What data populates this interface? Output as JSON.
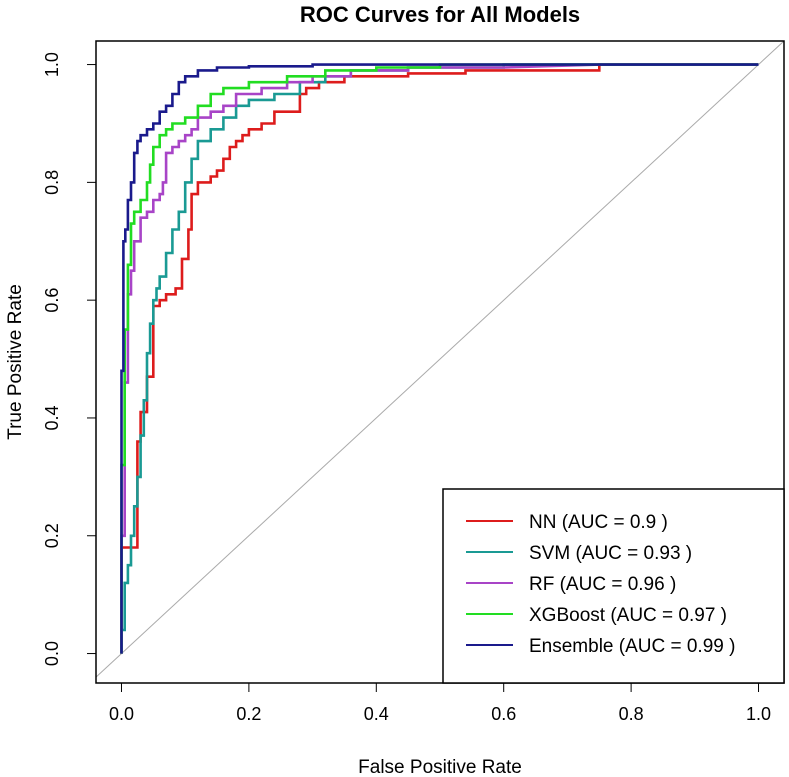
{
  "chart_data": {
    "type": "line",
    "title": "ROC Curves for All Models",
    "xlabel": "False Positive Rate",
    "ylabel": "True Positive Rate",
    "xlim": [
      -0.04,
      1.04
    ],
    "ylim": [
      -0.05,
      1.04
    ],
    "grid": false,
    "legend_position": "bottom-right",
    "xticks": [
      0.0,
      0.2,
      0.4,
      0.6,
      0.8,
      1.0
    ],
    "xtick_labels": [
      "0.0",
      "0.2",
      "0.4",
      "0.6",
      "0.8",
      "1.0"
    ],
    "yticks": [
      0.0,
      0.2,
      0.4,
      0.6,
      0.8,
      1.0
    ],
    "ytick_labels": [
      "0.0",
      "0.2",
      "0.4",
      "0.6",
      "0.8",
      "1.0"
    ],
    "reference_line": {
      "name": "chance",
      "points": [
        [
          -0.04,
          -0.04
        ],
        [
          1.04,
          1.04
        ]
      ],
      "color": "#aaaaaa"
    },
    "series": [
      {
        "name": "NN",
        "legend_label": "NN (AUC = 0.9 )",
        "color": "#dd1c1c",
        "x": [
          0,
          0,
          0.025,
          0.025,
          0.03,
          0.03,
          0.04,
          0.04,
          0.05,
          0.05,
          0.06,
          0.06,
          0.07,
          0.07,
          0.085,
          0.085,
          0.095,
          0.095,
          0.105,
          0.105,
          0.11,
          0.11,
          0.12,
          0.12,
          0.14,
          0.14,
          0.15,
          0.15,
          0.16,
          0.16,
          0.17,
          0.17,
          0.18,
          0.18,
          0.19,
          0.19,
          0.2,
          0.2,
          0.22,
          0.22,
          0.24,
          0.24,
          0.28,
          0.28,
          0.29,
          0.29,
          0.31,
          0.31,
          0.35,
          0.35,
          0.45,
          0.45,
          0.54,
          0.54,
          0.6,
          0.6,
          0.75,
          0.75,
          1.0
        ],
        "y": [
          0,
          0.18,
          0.18,
          0.36,
          0.36,
          0.41,
          0.41,
          0.47,
          0.47,
          0.59,
          0.59,
          0.6,
          0.6,
          0.61,
          0.61,
          0.62,
          0.62,
          0.67,
          0.67,
          0.72,
          0.72,
          0.78,
          0.78,
          0.8,
          0.8,
          0.81,
          0.81,
          0.82,
          0.82,
          0.84,
          0.84,
          0.86,
          0.86,
          0.87,
          0.87,
          0.88,
          0.88,
          0.89,
          0.89,
          0.9,
          0.9,
          0.92,
          0.92,
          0.95,
          0.95,
          0.96,
          0.96,
          0.97,
          0.97,
          0.98,
          0.98,
          0.985,
          0.985,
          0.99,
          0.99,
          0.99,
          0.99,
          1.0,
          1.0
        ]
      },
      {
        "name": "SVM",
        "legend_label": "SVM (AUC = 0.93 )",
        "color": "#1a9a94",
        "x": [
          0,
          0,
          0.005,
          0.005,
          0.01,
          0.01,
          0.015,
          0.015,
          0.02,
          0.02,
          0.025,
          0.025,
          0.03,
          0.03,
          0.035,
          0.035,
          0.04,
          0.04,
          0.045,
          0.045,
          0.05,
          0.05,
          0.055,
          0.055,
          0.06,
          0.06,
          0.07,
          0.07,
          0.08,
          0.08,
          0.09,
          0.09,
          0.1,
          0.1,
          0.11,
          0.11,
          0.12,
          0.12,
          0.14,
          0.14,
          0.16,
          0.16,
          0.18,
          0.18,
          0.2,
          0.2,
          0.24,
          0.24,
          0.28,
          0.28,
          0.32,
          0.32,
          0.36,
          0.36,
          0.45,
          0.45,
          0.55,
          0.55,
          0.6,
          0.6,
          0.7,
          1.0
        ],
        "y": [
          0,
          0.04,
          0.04,
          0.12,
          0.12,
          0.15,
          0.15,
          0.2,
          0.2,
          0.25,
          0.25,
          0.3,
          0.3,
          0.37,
          0.37,
          0.43,
          0.43,
          0.51,
          0.51,
          0.56,
          0.56,
          0.6,
          0.6,
          0.62,
          0.62,
          0.64,
          0.64,
          0.68,
          0.68,
          0.72,
          0.72,
          0.75,
          0.75,
          0.8,
          0.8,
          0.84,
          0.84,
          0.87,
          0.87,
          0.89,
          0.89,
          0.91,
          0.91,
          0.93,
          0.93,
          0.94,
          0.94,
          0.95,
          0.95,
          0.97,
          0.97,
          0.98,
          0.98,
          0.99,
          0.99,
          0.995,
          0.995,
          0.995,
          0.995,
          1.0,
          1.0,
          1.0
        ]
      },
      {
        "name": "RF",
        "legend_label": "RF (AUC = 0.96 )",
        "color": "#a844c7",
        "x": [
          0,
          0,
          0.005,
          0.005,
          0.01,
          0.01,
          0.015,
          0.015,
          0.02,
          0.02,
          0.03,
          0.03,
          0.04,
          0.04,
          0.05,
          0.05,
          0.06,
          0.06,
          0.065,
          0.065,
          0.07,
          0.07,
          0.08,
          0.08,
          0.09,
          0.09,
          0.1,
          0.1,
          0.11,
          0.11,
          0.12,
          0.12,
          0.14,
          0.14,
          0.16,
          0.16,
          0.18,
          0.18,
          0.22,
          0.22,
          0.26,
          0.26,
          0.3,
          0.3,
          0.36,
          0.36,
          0.45,
          0.45,
          0.6,
          0.6,
          0.75,
          1.0
        ],
        "y": [
          0,
          0.2,
          0.2,
          0.46,
          0.46,
          0.61,
          0.61,
          0.65,
          0.65,
          0.7,
          0.7,
          0.74,
          0.74,
          0.75,
          0.75,
          0.77,
          0.77,
          0.78,
          0.78,
          0.8,
          0.8,
          0.85,
          0.85,
          0.86,
          0.86,
          0.87,
          0.87,
          0.88,
          0.88,
          0.89,
          0.89,
          0.91,
          0.91,
          0.92,
          0.92,
          0.93,
          0.93,
          0.95,
          0.95,
          0.96,
          0.96,
          0.97,
          0.97,
          0.98,
          0.98,
          0.99,
          0.99,
          0.995,
          0.995,
          0.995,
          1.0,
          1.0
        ]
      },
      {
        "name": "XGBoost",
        "legend_label": "XGBoost (AUC = 0.97 )",
        "color": "#22dd22",
        "x": [
          0,
          0,
          0.005,
          0.005,
          0.01,
          0.01,
          0.015,
          0.015,
          0.02,
          0.02,
          0.03,
          0.03,
          0.04,
          0.04,
          0.045,
          0.045,
          0.05,
          0.05,
          0.06,
          0.06,
          0.07,
          0.07,
          0.08,
          0.08,
          0.1,
          0.1,
          0.12,
          0.12,
          0.14,
          0.14,
          0.16,
          0.16,
          0.2,
          0.2,
          0.26,
          0.26,
          0.32,
          0.32,
          0.4,
          0.4,
          0.5,
          0.5,
          0.6,
          1.0
        ],
        "y": [
          0,
          0.32,
          0.32,
          0.55,
          0.55,
          0.66,
          0.66,
          0.73,
          0.73,
          0.75,
          0.75,
          0.77,
          0.77,
          0.8,
          0.8,
          0.83,
          0.83,
          0.86,
          0.86,
          0.88,
          0.88,
          0.89,
          0.89,
          0.9,
          0.9,
          0.91,
          0.91,
          0.93,
          0.93,
          0.95,
          0.95,
          0.96,
          0.96,
          0.97,
          0.97,
          0.98,
          0.98,
          0.99,
          0.99,
          0.995,
          0.995,
          1.0,
          1.0,
          1.0
        ]
      },
      {
        "name": "Ensemble",
        "legend_label": "Ensemble (AUC = 0.99 )",
        "color": "#1a1a8c",
        "x": [
          0,
          0,
          0.003,
          0.003,
          0.006,
          0.006,
          0.01,
          0.01,
          0.015,
          0.015,
          0.02,
          0.02,
          0.025,
          0.025,
          0.03,
          0.03,
          0.04,
          0.04,
          0.05,
          0.05,
          0.06,
          0.06,
          0.07,
          0.07,
          0.08,
          0.08,
          0.09,
          0.09,
          0.1,
          0.1,
          0.12,
          0.12,
          0.15,
          0.15,
          0.2,
          0.2,
          0.3,
          0.3,
          0.55,
          0.55,
          1.0
        ],
        "y": [
          0,
          0.48,
          0.48,
          0.7,
          0.7,
          0.72,
          0.72,
          0.77,
          0.77,
          0.8,
          0.8,
          0.85,
          0.85,
          0.87,
          0.87,
          0.88,
          0.88,
          0.89,
          0.89,
          0.9,
          0.9,
          0.92,
          0.92,
          0.93,
          0.93,
          0.95,
          0.95,
          0.97,
          0.97,
          0.98,
          0.98,
          0.99,
          0.99,
          0.995,
          0.995,
          0.997,
          0.997,
          1.0,
          1.0,
          1.0,
          1.0
        ]
      }
    ]
  }
}
